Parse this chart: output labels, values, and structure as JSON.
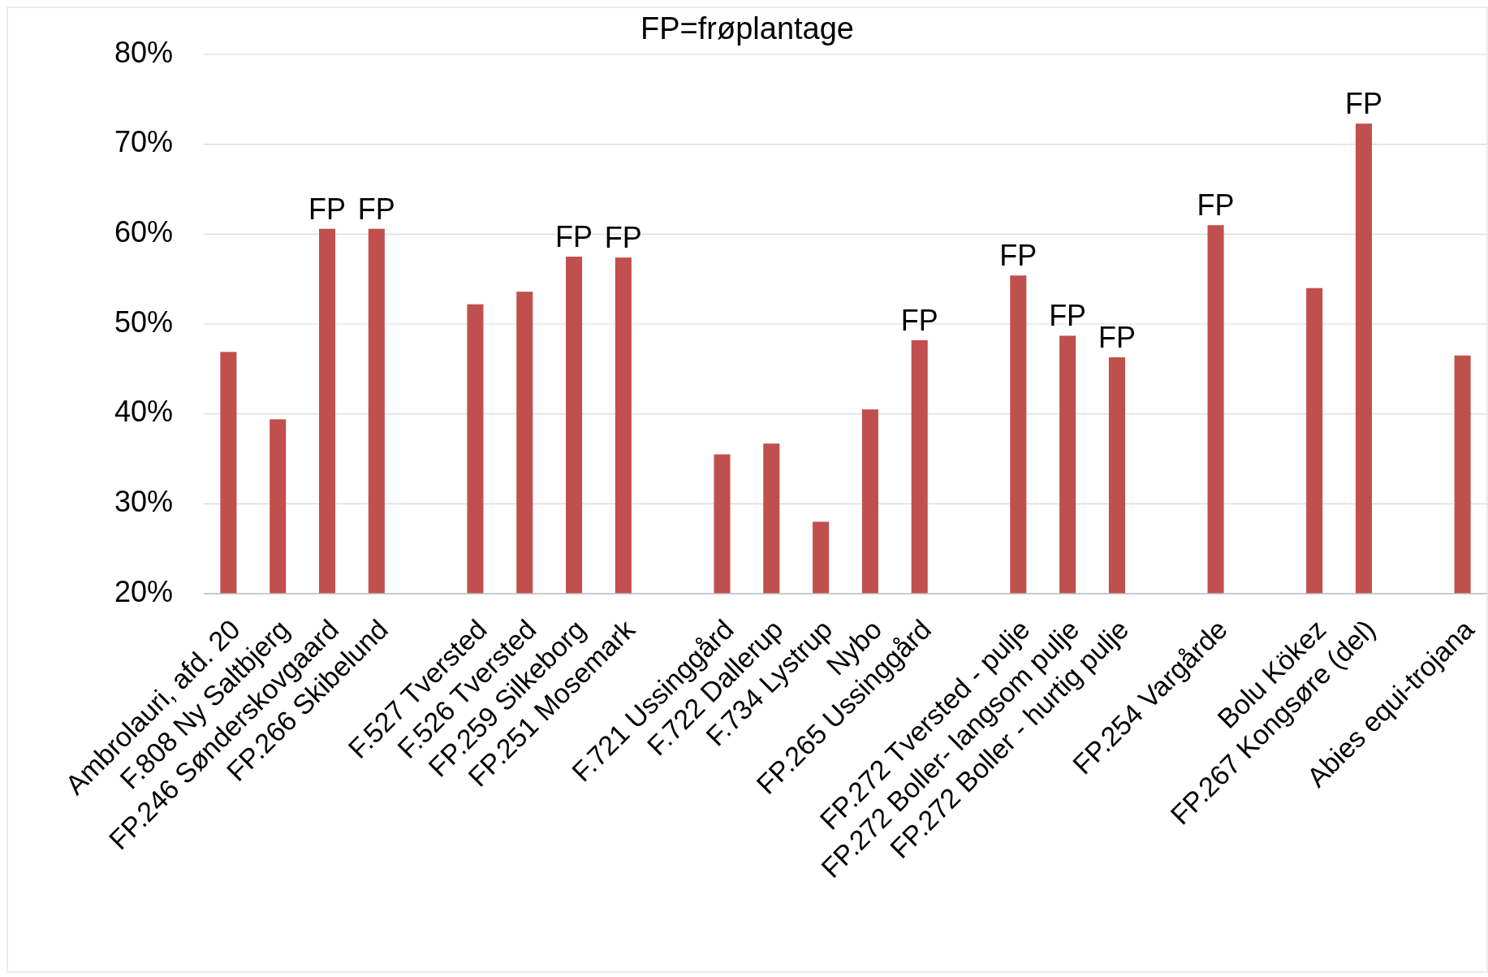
{
  "chart_data": {
    "type": "bar",
    "title": "FP=frøplantage",
    "categories": [
      "Ambrolauri, afd. 20",
      "F.808 Ny Saltbjerg",
      "FP.246 Sønderskovgaard",
      "FP.266 Skibelund",
      null,
      "F.527 Tversted",
      "F.526 Tversted",
      "FP.259 Silkeborg",
      "FP.251 Mosemark",
      null,
      "F.721 Ussinggård",
      "F.722 Dallerup",
      "F.734 Lystrup",
      "Nybo",
      "FP.265 Ussinggård",
      null,
      "FP.272 Tversted - pulje",
      "FP.272 Boller- langsom pulje",
      "FP.272 Boller - hurtig pulje",
      null,
      "FP.254 Vargårde",
      null,
      "Bolu Kökez",
      "FP.267 Kongsøre (del)",
      null,
      "Abies equi-trojana"
    ],
    "values": [
      46.9,
      39.4,
      60.6,
      60.6,
      null,
      52.2,
      53.6,
      57.5,
      57.4,
      null,
      35.5,
      36.7,
      28.0,
      40.5,
      48.2,
      null,
      55.4,
      48.7,
      46.3,
      null,
      61.0,
      null,
      54.0,
      72.3,
      null,
      46.5
    ],
    "color": "#c0504d",
    "ylim": [
      20,
      80
    ],
    "yticks": [
      {
        "value": 20,
        "label": "20%"
      },
      {
        "value": 30,
        "label": "30%"
      },
      {
        "value": 40,
        "label": "40%"
      },
      {
        "value": 50,
        "label": "50%"
      },
      {
        "value": 60,
        "label": "60%"
      },
      {
        "value": 70,
        "label": "70%"
      },
      {
        "value": 80,
        "label": "80%"
      }
    ],
    "grid": "y",
    "annotations": [
      {
        "text": "FP",
        "x": "FP.246 Sønderskovgaard",
        "y": 60.6
      },
      {
        "text": "FP",
        "x": "FP.266 Skibelund",
        "y": 60.6
      },
      {
        "text": "FP",
        "x": "FP.259 Silkeborg",
        "y": 57.5
      },
      {
        "text": "FP",
        "x": "FP.251 Mosemark",
        "y": 57.4
      },
      {
        "text": "FP",
        "x": "FP.265 Ussinggård",
        "y": 48.2
      },
      {
        "text": "FP",
        "x": "FP.272 Tversted - pulje",
        "y": 55.4
      },
      {
        "text": "FP",
        "x": "FP.272 Boller- langsom pulje",
        "y": 48.7
      },
      {
        "text": "FP",
        "x": "FP.272 Boller - hurtig pulje",
        "y": 46.3
      },
      {
        "text": "FP",
        "x": "FP.254 Vargårde",
        "y": 61.0
      },
      {
        "text": "FP",
        "x": "FP.267 Kongsøre (del)",
        "y": 72.3
      }
    ]
  }
}
